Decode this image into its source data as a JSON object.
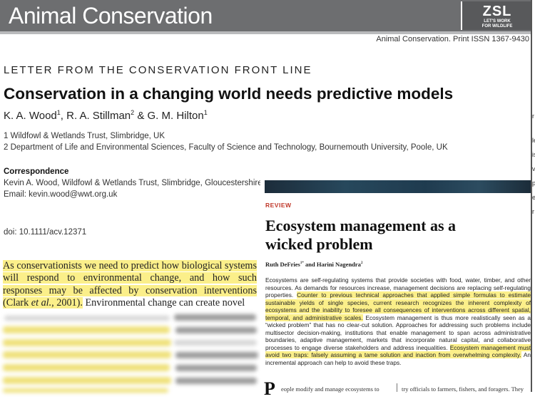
{
  "header": {
    "journal_title": "Animal Conservation",
    "logo_main": "ZSL",
    "logo_sub_1": "LET'S WORK",
    "logo_sub_2": "FOR WILDLIFE",
    "issn": "Animal Conservation. Print ISSN 1367-9430"
  },
  "article1": {
    "section_label": "LETTER FROM THE CONSERVATION FRONT LINE",
    "title": "Conservation in a changing world needs predictive models",
    "authors": [
      {
        "name": "K. A. Wood",
        "sup": "1",
        "sep": ", "
      },
      {
        "name": "R. A. Stillman",
        "sup": "2",
        "sep": " & "
      },
      {
        "name": "G. M. Hilton",
        "sup": "1",
        "sep": ""
      }
    ],
    "affiliation_1": "1 Wildfowl & Wetlands Trust, Slimbridge, UK",
    "affiliation_2": "2 Department of Life and Environmental Sciences, Faculty of Science and Technology, Bournemouth University, Poole, UK",
    "correspondence_heading": "Correspondence",
    "correspondence_text": "Kevin A. Wood, Wildfowl & Wetlands Trust, Slimbridge, Gloucestershire",
    "correspondence_email": "Email: kevin.wood@wwt.org.uk",
    "doi": "doi: 10.1111/acv.12371",
    "body_highlighted_1": "As conservationists we need to predict how biological systems will respond to environmental change, and how such responses may be affected by conservation interventions (Clark ",
    "body_highlighted_etal": "et al.",
    "body_highlighted_2": ", 2001).",
    "body_plain": " Environmental change can create novel"
  },
  "article2": {
    "label": "REVIEW",
    "title": "Ecosystem management as a wicked problem",
    "authors": "Ruth DeFries",
    "author_sup_1": "1*",
    "authors_joiner": " and Harini Nagendra",
    "author_sup_2": "2",
    "abstract_1": "Ecosystems are self-regulating systems that provide societies with food, water, timber, and other resources. As demands for resources increase, management decisions are replacing self-regulating properties. ",
    "abstract_hl_1": "Counter to previous technical approaches that applied simple formulas to estimate sustainable yields of single species, current research recognizes the inherent complexity of ecosystems and the inability to foresee all consequences of interventions across different spatial, temporal, and administrative scales.",
    "abstract_2": " Ecosystem management is thus more realistically seen as a “wicked problem” that has no clear-cut solution. Approaches for addressing such problems include multisector decision-making, institutions that enable management to span across administrative boundaries, adaptive management, markets that incorporate natural capital, and collaborative processes to engage diverse stakeholders and address inequalities. ",
    "abstract_hl_2": "Ecosystem management must avoid two traps: falsely assuming a tame solution and inaction from overwhelming complexity.",
    "abstract_3": " An incremental approach can help to avoid these traps.",
    "dropcap": "P",
    "col_a": "eople modify and manage ecosystems to",
    "col_b": "try officials to farmers, fishers, and foragers. They"
  },
  "edge_fragments": [
    "r",
    "le",
    "is",
    "v",
    "pe",
    "ed",
    "r"
  ],
  "colors": {
    "header_gray": "#6d6e70",
    "highlight": "#fbef8a",
    "review_red": "#c0392b"
  }
}
